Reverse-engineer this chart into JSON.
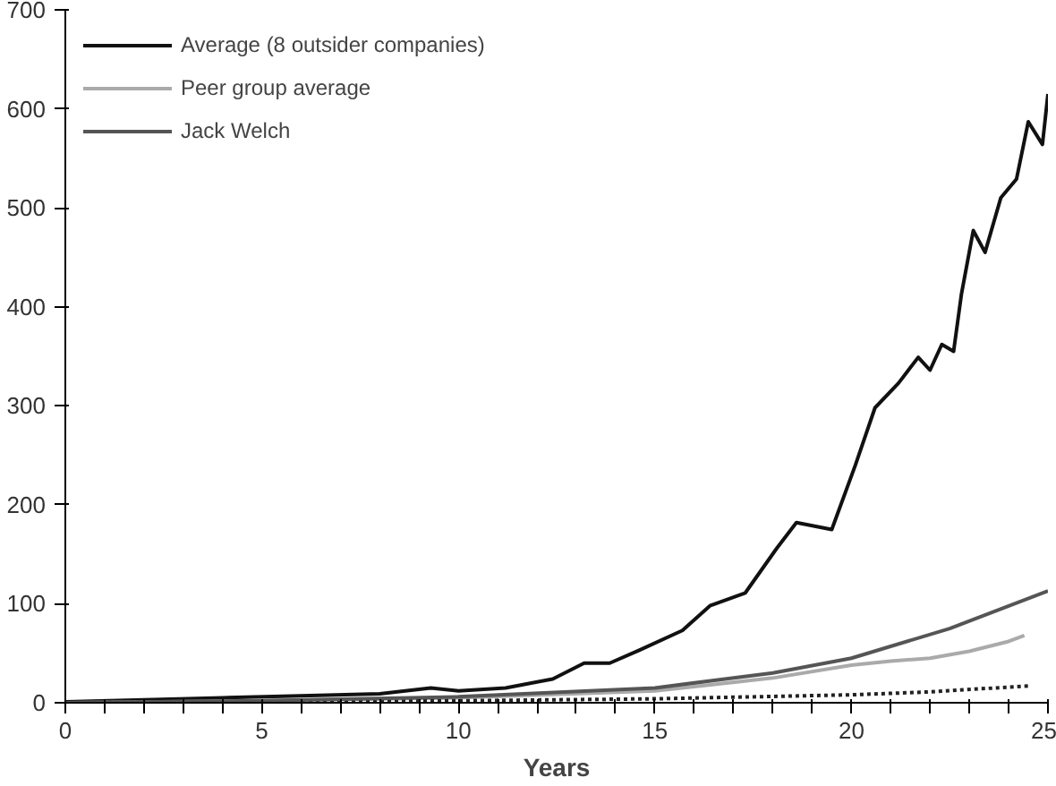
{
  "chart_data": {
    "type": "line",
    "xlabel": "Years",
    "xlim": [
      0,
      25
    ],
    "ylim": [
      0,
      700
    ],
    "xticks": [
      0,
      {
        "value": 1,
        "label": null
      },
      {
        "value": 2,
        "label": null
      },
      {
        "value": 3,
        "label": null
      },
      {
        "value": 4,
        "label": null
      },
      5,
      {
        "value": 6,
        "label": null
      },
      {
        "value": 7,
        "label": null
      },
      {
        "value": 8,
        "label": null
      },
      {
        "value": 9,
        "label": null
      },
      10,
      {
        "value": 11,
        "label": null
      },
      {
        "value": 12,
        "label": null
      },
      {
        "value": 13,
        "label": null
      },
      {
        "value": 14,
        "label": null
      },
      15,
      {
        "value": 16,
        "label": null
      },
      {
        "value": 17,
        "label": null
      },
      {
        "value": 18,
        "label": null
      },
      {
        "value": 19,
        "label": null
      },
      20,
      {
        "value": 21,
        "label": null
      },
      {
        "value": 22,
        "label": null
      },
      {
        "value": 23,
        "label": null
      },
      {
        "value": 24,
        "label": null
      },
      25
    ],
    "yticks": [
      0,
      100,
      200,
      300,
      400,
      500,
      600,
      700
    ],
    "grid": false,
    "legend": "top left",
    "series": [
      {
        "name": "Average (8 outsider companies)",
        "color": "#111111",
        "line_style": "solid",
        "x": [
          0,
          2,
          4,
          6,
          8,
          9.3,
          10,
          11.2,
          12.4,
          13.2,
          13.85,
          14.6,
          15.7,
          16.4,
          17.3,
          18.1,
          18.6,
          19.5,
          20.1,
          20.6,
          21.2,
          21.7,
          22.0,
          22.3,
          22.6,
          22.8,
          23.1,
          23.4,
          23.8,
          24.2,
          24.5,
          24.86,
          25
        ],
        "values": [
          1,
          3,
          5,
          7,
          9,
          15,
          12,
          15,
          24,
          40,
          40,
          53,
          73,
          98,
          111,
          156,
          182,
          175,
          240,
          298,
          323,
          349,
          336,
          362,
          355,
          413,
          477,
          455,
          510,
          529,
          587,
          564,
          615
        ]
      },
      {
        "name": "Peer group average",
        "color": "#aaaaaa",
        "line_style": "solid",
        "x": [
          0,
          5,
          10,
          15,
          18,
          20,
          21,
          22,
          23,
          24,
          24.4
        ],
        "values": [
          0,
          2,
          5,
          12,
          25,
          38,
          42,
          45,
          52,
          62,
          68
        ]
      },
      {
        "color": "#222222",
        "line_style": "dotted",
        "x": [
          0,
          5,
          10,
          15,
          20,
          22,
          24.5
        ],
        "values": [
          0,
          1,
          2,
          4,
          8,
          11,
          17
        ]
      },
      {
        "name": "Jack Welch",
        "color": "#555555",
        "line_style": "solid",
        "x": [
          0,
          5,
          10,
          15,
          18,
          20,
          22.5,
          25
        ],
        "values": [
          0,
          2,
          6,
          15,
          30,
          45,
          75,
          113
        ]
      }
    ]
  }
}
